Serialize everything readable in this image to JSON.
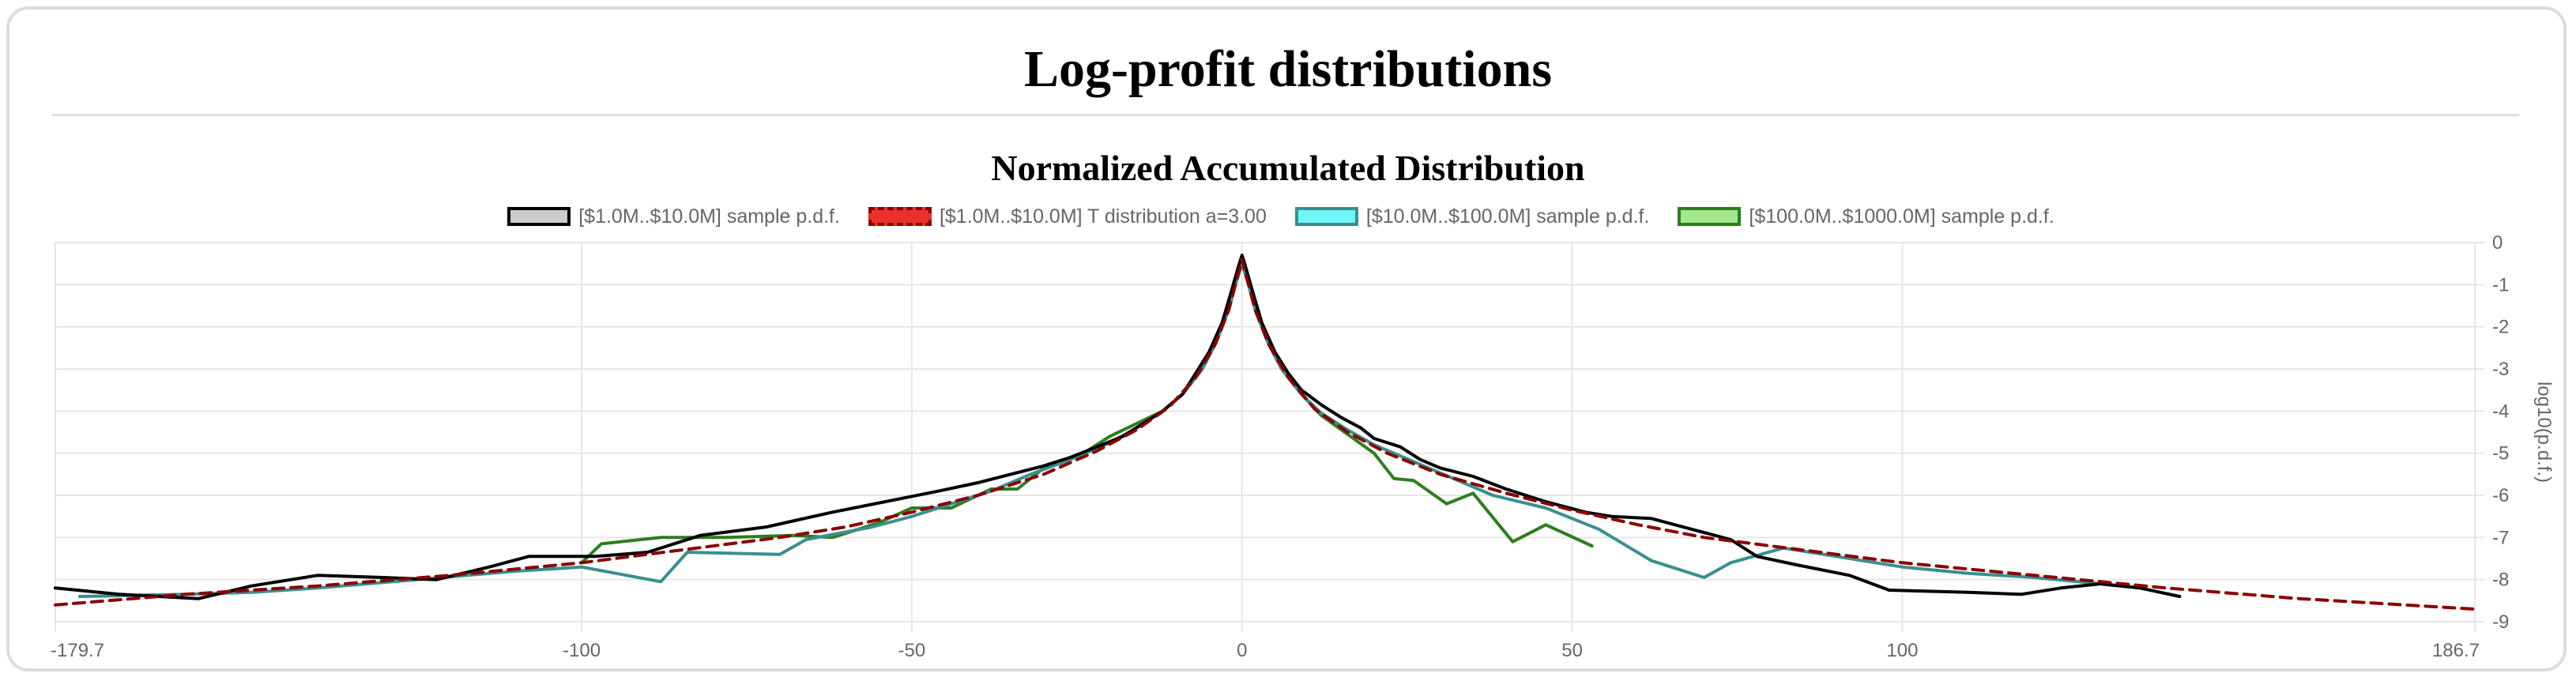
{
  "page": {
    "title": "Log-profit distributions"
  },
  "chart_data": {
    "type": "line",
    "title": "Normalized Accumulated Distribution",
    "xlabel": "",
    "ylabel": "log10(p.d.f.)",
    "xlim": [
      -179.7,
      186.7
    ],
    "ylim": [
      -9,
      0
    ],
    "x_ticks": [
      "-179.7",
      "-100",
      "-50",
      "0",
      "50",
      "100",
      "186.7"
    ],
    "y_ticks": [
      "0",
      "-1",
      "-2",
      "-3",
      "-4",
      "-5",
      "-6",
      "-7",
      "-8",
      "-9"
    ],
    "grid": true,
    "legend_position": "top",
    "series": [
      {
        "name": "[$1.0M..$10.0M] sample p.d.f.",
        "color": "#000000",
        "fill": "#cccccc",
        "dash": false,
        "points": [
          [
            -179.7,
            -8.2
          ],
          [
            -170,
            -8.35
          ],
          [
            -158,
            -8.45
          ],
          [
            -150,
            -8.15
          ],
          [
            -140,
            -7.9
          ],
          [
            -130,
            -7.95
          ],
          [
            -122,
            -8.0
          ],
          [
            -114,
            -7.7
          ],
          [
            -108,
            -7.45
          ],
          [
            -98,
            -7.45
          ],
          [
            -90,
            -7.35
          ],
          [
            -82,
            -6.95
          ],
          [
            -72,
            -6.75
          ],
          [
            -62,
            -6.4
          ],
          [
            -54,
            -6.15
          ],
          [
            -46,
            -5.9
          ],
          [
            -40,
            -5.7
          ],
          [
            -35,
            -5.5
          ],
          [
            -30,
            -5.3
          ],
          [
            -26,
            -5.1
          ],
          [
            -22,
            -4.85
          ],
          [
            -18,
            -4.6
          ],
          [
            -15,
            -4.3
          ],
          [
            -12,
            -4.0
          ],
          [
            -9,
            -3.6
          ],
          [
            -7,
            -3.1
          ],
          [
            -5,
            -2.6
          ],
          [
            -3,
            -1.9
          ],
          [
            -1.5,
            -1.1
          ],
          [
            -0.5,
            -0.55
          ],
          [
            0,
            -0.3
          ],
          [
            0.5,
            -0.55
          ],
          [
            1.5,
            -1.1
          ],
          [
            3,
            -1.9
          ],
          [
            5,
            -2.6
          ],
          [
            7,
            -3.1
          ],
          [
            9,
            -3.5
          ],
          [
            12,
            -3.85
          ],
          [
            15,
            -4.15
          ],
          [
            18,
            -4.4
          ],
          [
            20,
            -4.65
          ],
          [
            24,
            -4.85
          ],
          [
            27,
            -5.15
          ],
          [
            30,
            -5.35
          ],
          [
            35,
            -5.55
          ],
          [
            40,
            -5.85
          ],
          [
            46,
            -6.15
          ],
          [
            52,
            -6.4
          ],
          [
            56,
            -6.5
          ],
          [
            62,
            -6.55
          ],
          [
            68,
            -6.8
          ],
          [
            74,
            -7.05
          ],
          [
            78,
            -7.45
          ],
          [
            84,
            -7.65
          ],
          [
            92,
            -7.9
          ],
          [
            98,
            -8.25
          ],
          [
            110,
            -8.3
          ],
          [
            118,
            -8.35
          ],
          [
            124,
            -8.2
          ],
          [
            130,
            -8.1
          ],
          [
            136,
            -8.2
          ],
          [
            142,
            -8.4
          ]
        ]
      },
      {
        "name": "[$1.0M..$10.0M] T distribution a=3.00",
        "color": "#8b0000",
        "fill": "#e8312a",
        "dash": true,
        "points": [
          [
            -179.7,
            -8.6
          ],
          [
            -160,
            -8.35
          ],
          [
            -140,
            -8.15
          ],
          [
            -120,
            -7.9
          ],
          [
            -100,
            -7.6
          ],
          [
            -85,
            -7.3
          ],
          [
            -70,
            -7.0
          ],
          [
            -60,
            -6.75
          ],
          [
            -50,
            -6.4
          ],
          [
            -40,
            -6.0
          ],
          [
            -30,
            -5.5
          ],
          [
            -22,
            -4.95
          ],
          [
            -16,
            -4.45
          ],
          [
            -11,
            -3.9
          ],
          [
            -7,
            -3.2
          ],
          [
            -4,
            -2.4
          ],
          [
            -2,
            -1.6
          ],
          [
            -1,
            -1.0
          ],
          [
            0,
            -0.4
          ],
          [
            1,
            -1.0
          ],
          [
            2,
            -1.6
          ],
          [
            4,
            -2.4
          ],
          [
            7,
            -3.2
          ],
          [
            11,
            -3.95
          ],
          [
            16,
            -4.5
          ],
          [
            22,
            -5.0
          ],
          [
            30,
            -5.5
          ],
          [
            40,
            -5.95
          ],
          [
            50,
            -6.35
          ],
          [
            60,
            -6.7
          ],
          [
            70,
            -7.0
          ],
          [
            85,
            -7.3
          ],
          [
            100,
            -7.6
          ],
          [
            120,
            -7.9
          ],
          [
            140,
            -8.2
          ],
          [
            160,
            -8.45
          ],
          [
            186.7,
            -8.7
          ]
        ]
      },
      {
        "name": "[$10.0M..$100.0M] sample p.d.f.",
        "color": "#3a8f8f",
        "fill": "#6ff7f7",
        "dash": false,
        "points": [
          [
            -176,
            -8.4
          ],
          [
            -160,
            -8.35
          ],
          [
            -150,
            -8.3
          ],
          [
            -140,
            -8.2
          ],
          [
            -125,
            -8.0
          ],
          [
            -110,
            -7.8
          ],
          [
            -100,
            -7.7
          ],
          [
            -88,
            -8.05
          ],
          [
            -84,
            -7.35
          ],
          [
            -70,
            -7.4
          ],
          [
            -66,
            -7.05
          ],
          [
            -56,
            -6.75
          ],
          [
            -50,
            -6.5
          ],
          [
            -44,
            -6.2
          ],
          [
            -38,
            -5.9
          ],
          [
            -32,
            -5.5
          ],
          [
            -26,
            -5.15
          ],
          [
            -20,
            -4.75
          ],
          [
            -16,
            -4.4
          ],
          [
            -12,
            -4.0
          ],
          [
            -9,
            -3.6
          ],
          [
            -6,
            -3.0
          ],
          [
            -4,
            -2.4
          ],
          [
            -2,
            -1.6
          ],
          [
            -1,
            -1.0
          ],
          [
            0,
            -0.5
          ],
          [
            1,
            -1.0
          ],
          [
            2,
            -1.6
          ],
          [
            4,
            -2.4
          ],
          [
            6,
            -3.0
          ],
          [
            9,
            -3.6
          ],
          [
            12,
            -4.05
          ],
          [
            16,
            -4.45
          ],
          [
            20,
            -4.8
          ],
          [
            26,
            -5.2
          ],
          [
            32,
            -5.6
          ],
          [
            38,
            -6.0
          ],
          [
            46,
            -6.3
          ],
          [
            54,
            -6.8
          ],
          [
            62,
            -7.55
          ],
          [
            70,
            -7.95
          ],
          [
            74,
            -7.6
          ],
          [
            82,
            -7.25
          ],
          [
            90,
            -7.45
          ],
          [
            100,
            -7.7
          ],
          [
            110,
            -7.85
          ],
          [
            120,
            -7.95
          ],
          [
            130,
            -8.1
          ],
          [
            136,
            -8.2
          ]
        ]
      },
      {
        "name": "[$100.0M..$1000.0M] sample p.d.f.",
        "color": "#2e7d1e",
        "fill": "#a3e88e",
        "dash": false,
        "points": [
          [
            -100,
            -7.6
          ],
          [
            -97,
            -7.15
          ],
          [
            -88,
            -7.0
          ],
          [
            -78,
            -7.0
          ],
          [
            -68,
            -6.95
          ],
          [
            -62,
            -7.0
          ],
          [
            -55,
            -6.65
          ],
          [
            -50,
            -6.3
          ],
          [
            -44,
            -6.3
          ],
          [
            -38,
            -5.85
          ],
          [
            -34,
            -5.85
          ],
          [
            -30,
            -5.35
          ],
          [
            -24,
            -5.0
          ],
          [
            -20,
            -4.6
          ],
          [
            -16,
            -4.3
          ],
          [
            -12,
            -4.0
          ],
          [
            -9,
            -3.6
          ],
          [
            -6,
            -3.0
          ],
          [
            -4,
            -2.4
          ],
          [
            -2,
            -1.6
          ],
          [
            -1,
            -1.0
          ],
          [
            0,
            -0.5
          ],
          [
            1,
            -1.0
          ],
          [
            2,
            -1.6
          ],
          [
            4,
            -2.4
          ],
          [
            6,
            -3.0
          ],
          [
            9,
            -3.6
          ],
          [
            12,
            -4.1
          ],
          [
            16,
            -4.55
          ],
          [
            20,
            -5.0
          ],
          [
            23,
            -5.6
          ],
          [
            26,
            -5.65
          ],
          [
            31,
            -6.2
          ],
          [
            35,
            -5.95
          ],
          [
            41,
            -7.1
          ],
          [
            46,
            -6.7
          ],
          [
            53,
            -7.2
          ]
        ]
      }
    ]
  }
}
